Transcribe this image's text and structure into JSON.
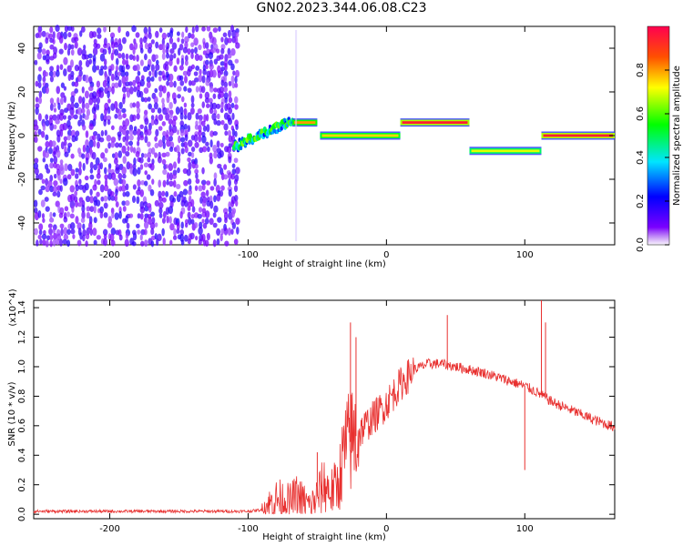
{
  "page": {
    "title": "GN02.2023.344.06.08.C23"
  },
  "chart_data": [
    {
      "type": "heatmap",
      "panel": "top",
      "xlabel": "Height of straight line (km)",
      "ylabel": "Frequency (Hz)",
      "xlim": [
        -255,
        165
      ],
      "ylim": [
        -50,
        50
      ],
      "xticks": [
        -200,
        -100,
        0,
        100
      ],
      "xtick_labels": [
        "-200",
        "-100",
        "0",
        "100"
      ],
      "yticks": [
        -40,
        -20,
        0,
        20,
        40
      ],
      "ytick_labels": [
        "-40",
        "-20",
        "0",
        "20",
        "40"
      ],
      "colorbar": {
        "label": "Normalized spectral amplitude",
        "range": [
          0,
          1
        ],
        "ticks": [
          0,
          0.2,
          0.4,
          0.6,
          0.8
        ],
        "tick_labels": [
          "0.0",
          "0.2",
          "0.4",
          "0.6",
          "0.8"
        ]
      },
      "features": [
        {
          "kind": "noise",
          "x_range": [
            -255,
            -108
          ],
          "freq_range": [
            -50,
            50
          ],
          "amplitude": 0.15
        },
        {
          "kind": "ramp",
          "x_range": [
            -110,
            -68
          ],
          "freq_from": -5,
          "freq_to": 7,
          "amplitude": 0.5
        },
        {
          "kind": "tone",
          "x_range": [
            -68,
            -50
          ],
          "freq": 6,
          "amplitude": 0.8
        },
        {
          "kind": "tone",
          "x_range": [
            -48,
            10
          ],
          "freq": 0,
          "amplitude": 0.75
        },
        {
          "kind": "tone",
          "x_range": [
            10,
            60
          ],
          "freq": 6,
          "amplitude": 0.95
        },
        {
          "kind": "tone",
          "x_range": [
            60,
            112
          ],
          "freq": -7,
          "amplitude": 0.7
        },
        {
          "kind": "tone",
          "x_range": [
            112,
            165
          ],
          "freq": 0,
          "amplitude": 0.95
        }
      ]
    },
    {
      "type": "line",
      "panel": "bottom",
      "xlabel": "Height of straight line (km)",
      "ylabel": "SNR (10 * v/v)",
      "yunit": "(x10^4)",
      "xlim": [
        -255,
        165
      ],
      "ylim": [
        -0.03,
        1.45
      ],
      "xticks": [
        -200,
        -100,
        0,
        100
      ],
      "xtick_labels": [
        "-200",
        "-100",
        "0",
        "100"
      ],
      "yticks": [
        0,
        0.2,
        0.4,
        0.6,
        0.8,
        1.0,
        1.2,
        1.4
      ],
      "ytick_labels": [
        "0.0",
        "0.2",
        "0.4",
        "0.6",
        "0.8",
        "1.0",
        "1.2",
        "1.4"
      ],
      "color": "#e8302f",
      "series": [
        {
          "x": [
            -255,
            -200,
            -150,
            -110,
            -100,
            -90,
            -85,
            -80,
            -75,
            -70,
            -65,
            -60,
            -55,
            -50,
            -45,
            -40,
            -35,
            -30,
            -25,
            -20,
            -15,
            -10,
            -5,
            0,
            10,
            20,
            30,
            40,
            50,
            60,
            70,
            80,
            90,
            100,
            110,
            120,
            130,
            140,
            150,
            165
          ],
          "values": [
            0.02,
            0.02,
            0.02,
            0.02,
            0.02,
            0.03,
            0.06,
            0.1,
            0.1,
            0.08,
            0.12,
            0.09,
            0.05,
            0.12,
            0.2,
            0.15,
            0.2,
            0.45,
            0.5,
            0.55,
            0.6,
            0.65,
            0.7,
            0.75,
            0.88,
            0.98,
            1.02,
            1.02,
            1.0,
            0.98,
            0.96,
            0.93,
            0.9,
            0.87,
            0.82,
            0.76,
            0.72,
            0.68,
            0.64,
            0.59
          ]
        }
      ],
      "spikes": [
        {
          "x": -50,
          "value": 0.42
        },
        {
          "x": -26,
          "value": 1.3
        },
        {
          "x": -22,
          "value": 1.2
        },
        {
          "x": 44,
          "value": 1.35
        },
        {
          "x": 100,
          "value": 0.3
        },
        {
          "x": 112,
          "value": 1.45
        },
        {
          "x": 115,
          "value": 1.3
        }
      ]
    }
  ]
}
